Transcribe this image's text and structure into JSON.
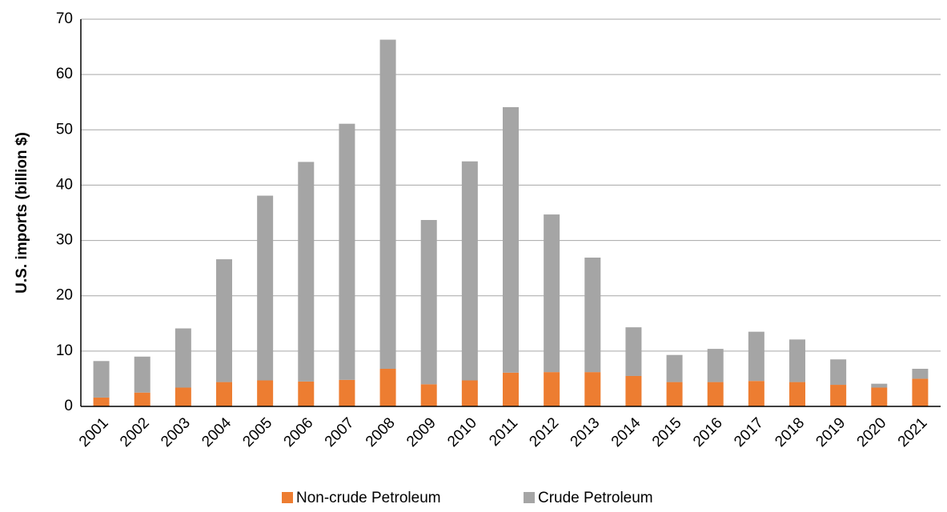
{
  "chart_data": {
    "type": "stacked_bar",
    "y_label": "U.S. imports (billion $)",
    "categories": [
      "2001",
      "2002",
      "2003",
      "2004",
      "2005",
      "2006",
      "2007",
      "2008",
      "2009",
      "2010",
      "2011",
      "2012",
      "2013",
      "2014",
      "2015",
      "2016",
      "2017",
      "2018",
      "2019",
      "2020",
      "2021"
    ],
    "series": [
      {
        "name": "Non-crude Petroleum",
        "color": "#ed7d31",
        "values": [
          1.6,
          2.5,
          3.4,
          4.4,
          4.7,
          4.5,
          4.8,
          6.8,
          4.0,
          4.7,
          6.1,
          6.2,
          6.2,
          5.5,
          4.4,
          4.4,
          4.6,
          4.4,
          3.9,
          3.4,
          5.0
        ]
      },
      {
        "name": "Crude Petroleum",
        "color": "#a5a5a5",
        "values": [
          6.6,
          6.5,
          10.7,
          22.2,
          33.4,
          39.7,
          46.3,
          59.5,
          29.7,
          39.6,
          48.0,
          28.5,
          20.7,
          8.8,
          4.9,
          6.0,
          8.9,
          7.7,
          4.6,
          0.7,
          1.8
        ]
      }
    ],
    "ylim": [
      0,
      70
    ],
    "yticks": [
      0,
      10,
      20,
      30,
      40,
      50,
      60,
      70
    ],
    "grid": true,
    "legend": "bottom"
  }
}
